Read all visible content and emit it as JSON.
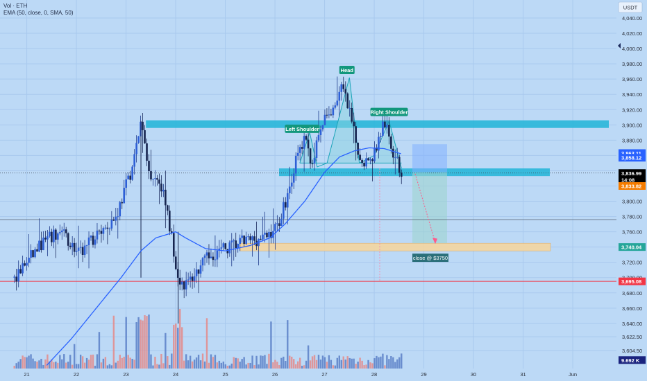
{
  "legend": {
    "line1": "Vol · ETH",
    "line2": "EMA (50, close, 0, SMA, 50)"
  },
  "currency": "USDT",
  "colors": {
    "background": "#bcd9f6",
    "up": "#1e2a7a",
    "down": "#1e2a7a",
    "zone": "#29b6d9",
    "ema": "#2962ff",
    "red_line": "#f23645",
    "target_zone": "#f5d6a0",
    "label_green": "#12977c",
    "vol_up": "#5b7fc7",
    "vol_down": "#e48a8a"
  },
  "chart_data": {
    "type": "candlestick",
    "title": "",
    "xlabel": "",
    "ylabel": "",
    "ylim": [
      3585,
      4055
    ],
    "y_ticks": [
      "4,040.00",
      "4,020.00",
      "4,000.00",
      "3,980.00",
      "3,960.00",
      "3,940.00",
      "3,920.00",
      "3,900.00",
      "3,880.00",
      "3,860.00",
      "3,840.00",
      "3,820.00",
      "3,800.00",
      "3,780.00",
      "3,760.00",
      "3,740.00",
      "3,720.00",
      "3,700.00",
      "3,680.00",
      "3,660.00",
      "3,640.00",
      "3,622.50",
      "3,604.50"
    ],
    "y_tick_values": [
      4040,
      4020,
      4000,
      3980,
      3960,
      3940,
      3920,
      3900,
      3880,
      3860,
      3840,
      3820,
      3800,
      3780,
      3760,
      3740,
      3720,
      3700,
      3680,
      3660,
      3640,
      3622.5,
      3604.5
    ],
    "x_ticks": [
      "21",
      "22",
      "23",
      "24",
      "25",
      "26",
      "27",
      "28",
      "29",
      "30",
      "31",
      "Jun"
    ],
    "x_tick_days": [
      21,
      22,
      23,
      24,
      25,
      26,
      27,
      28,
      29,
      30,
      31,
      32
    ],
    "x_start_day": 20.75,
    "x_end_day": 32.0,
    "last_candle_day": 28.55,
    "price_anchors": [
      [
        20.75,
        3700
      ],
      [
        21.3,
        3745
      ],
      [
        21.7,
        3760
      ],
      [
        22.05,
        3730
      ],
      [
        22.4,
        3755
      ],
      [
        22.8,
        3780
      ],
      [
        23.15,
        3850
      ],
      [
        23.3,
        3905
      ],
      [
        23.45,
        3840
      ],
      [
        23.7,
        3825
      ],
      [
        23.9,
        3760
      ],
      [
        24.05,
        3700
      ],
      [
        24.2,
        3690
      ],
      [
        24.45,
        3710
      ],
      [
        24.7,
        3730
      ],
      [
        25.0,
        3738
      ],
      [
        25.4,
        3748
      ],
      [
        25.8,
        3752
      ],
      [
        26.05,
        3768
      ],
      [
        26.25,
        3808
      ],
      [
        26.45,
        3860
      ],
      [
        26.6,
        3880
      ],
      [
        26.75,
        3850
      ],
      [
        26.95,
        3900
      ],
      [
        27.15,
        3920
      ],
      [
        27.35,
        3950
      ],
      [
        27.5,
        3915
      ],
      [
        27.7,
        3858
      ],
      [
        27.9,
        3850
      ],
      [
        28.05,
        3872
      ],
      [
        28.2,
        3905
      ],
      [
        28.35,
        3870
      ],
      [
        28.5,
        3845
      ],
      [
        28.55,
        3836
      ]
    ],
    "ema_anchors": [
      [
        21.4,
        3585
      ],
      [
        21.9,
        3620
      ],
      [
        22.4,
        3660
      ],
      [
        22.9,
        3700
      ],
      [
        23.3,
        3735
      ],
      [
        23.6,
        3752
      ],
      [
        24.0,
        3760
      ],
      [
        24.2,
        3752
      ],
      [
        24.6,
        3738
      ],
      [
        25.0,
        3735
      ],
      [
        25.5,
        3742
      ],
      [
        25.9,
        3752
      ],
      [
        26.2,
        3770
      ],
      [
        26.6,
        3800
      ],
      [
        27.0,
        3838
      ],
      [
        27.3,
        3858
      ],
      [
        27.6,
        3866
      ],
      [
        27.9,
        3870
      ],
      [
        28.2,
        3869
      ],
      [
        28.55,
        3862
      ]
    ],
    "pattern_line": [
      [
        26.5,
        3850
      ],
      [
        26.7,
        3890
      ],
      [
        26.85,
        3845
      ],
      [
        27.05,
        3850
      ],
      [
        27.5,
        3962
      ],
      [
        27.7,
        3850
      ],
      [
        28.0,
        3860
      ],
      [
        28.3,
        3905
      ],
      [
        28.55,
        3843
      ]
    ],
    "neckline_day_start": 26.95,
    "neckline_day_end": 28.55,
    "neckline_price": 3850,
    "resistance": {
      "price_top": 3906,
      "price_bottom": 3896,
      "day_start": 23.4,
      "day_end": 32.5
    },
    "support": {
      "price_top": 3843,
      "price_bottom": 3833,
      "day_start": 26.2,
      "day_end": 31.35
    },
    "target_zone": {
      "price_top": 3745,
      "price_bottom": 3735,
      "day_start": 25.4,
      "day_end": 31.35
    },
    "short_position": {
      "day_start": 28.75,
      "day_end": 29.4,
      "entry": 3838,
      "stop": 3862,
      "target": 3745
    },
    "red_level": 3695.08,
    "gray_level": 3776,
    "current_price_line": 3836.99,
    "annotations": {
      "head": {
        "text": "Head",
        "day": 27.45,
        "price": 3972
      },
      "left_shoulder": {
        "text": "Left Shoulder",
        "day": 26.55,
        "price": 3895
      },
      "right_shoulder": {
        "text": "Right Shoulder",
        "day": 28.3,
        "price": 3917
      },
      "close": {
        "text": "close @ $3750",
        "day": 29.05,
        "price": 3726
      }
    },
    "price_labels": [
      {
        "text": "3,863.11",
        "price": 3863.11,
        "bg": "#2962ff",
        "fg": "#ffffff"
      },
      {
        "text": "3,858.12",
        "price": 3857.0,
        "bg": "#2962ff",
        "fg": "#ffffff"
      },
      {
        "text": "3,836.99",
        "price": 3836.99,
        "bg": "#000000",
        "fg": "#ffffff"
      },
      {
        "text": "14:08",
        "price": 3828.3,
        "bg": "#000000",
        "fg": "#ffffff"
      },
      {
        "text": "3,833.82",
        "price": 3820.0,
        "bg": "#f57c00",
        "fg": "#ffffff"
      },
      {
        "text": "3,740.04",
        "price": 3740.04,
        "bg": "#26a69a",
        "fg": "#ffffff"
      },
      {
        "text": "3,695.08",
        "price": 3695.08,
        "bg": "#f23645",
        "fg": "#ffffff"
      },
      {
        "text": "9.692 K",
        "price": 3592,
        "bg": "#1a237e",
        "fg": "#ffffff"
      }
    ]
  }
}
